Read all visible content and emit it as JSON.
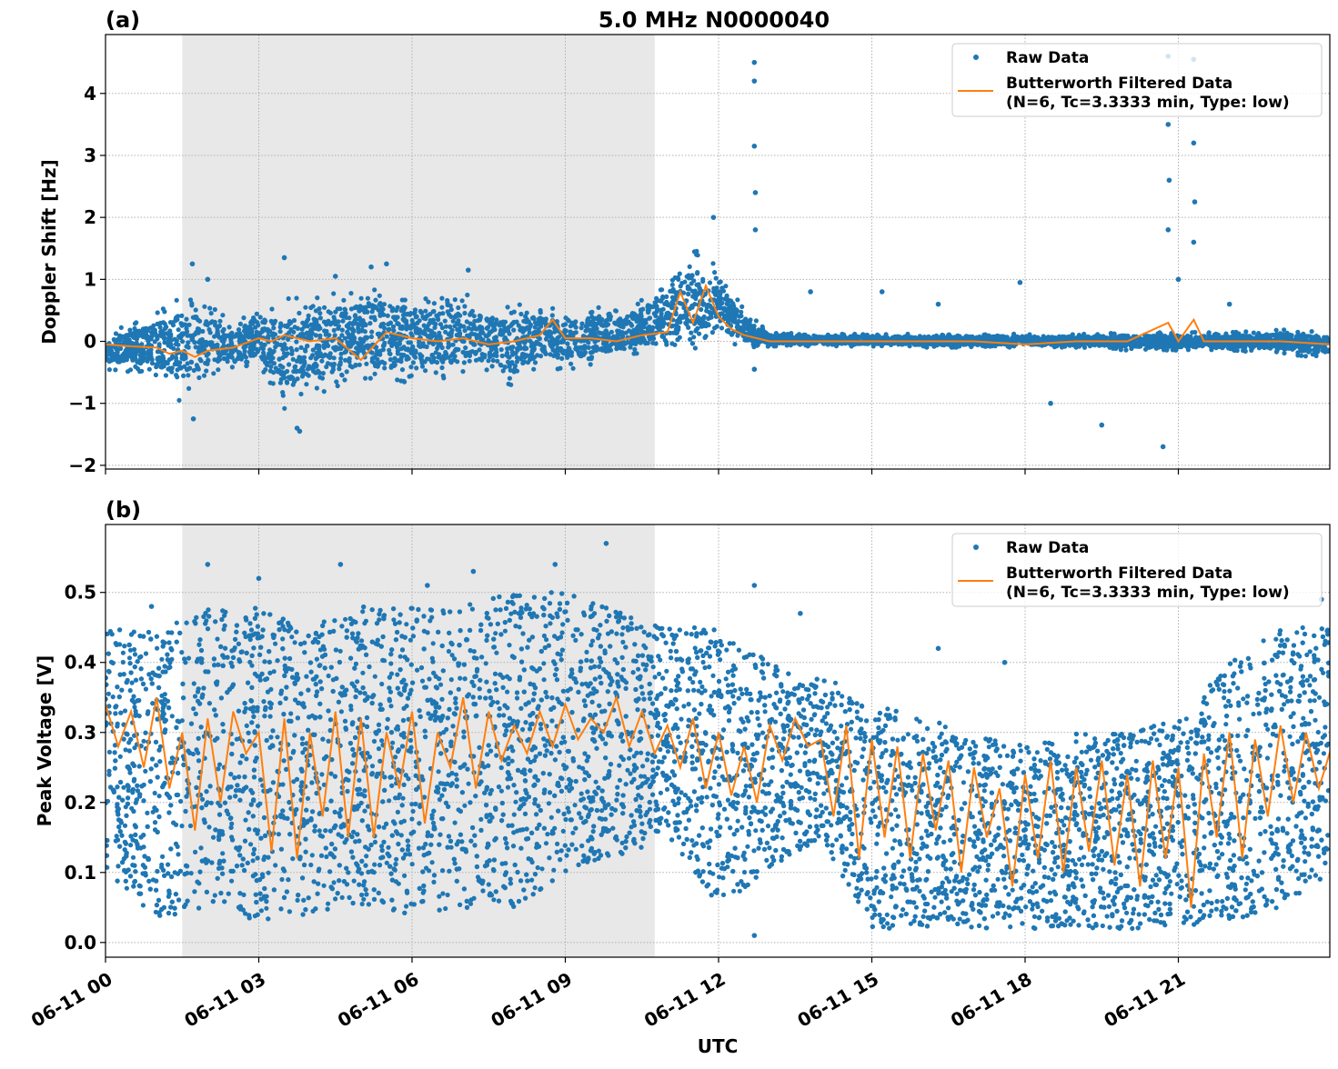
{
  "chart_data": [
    {
      "type": "scatter",
      "panel_label": "(a)",
      "title": "5.0 MHz N0000040",
      "xlabel": "",
      "ylabel": "Doppler Shift [Hz]",
      "xlim_hours": [
        0,
        24
      ],
      "ylim": [
        -2.06,
        4.95
      ],
      "yticks": [
        -2,
        -1,
        0,
        1,
        2,
        3,
        4
      ],
      "ytick_labels": [
        "−2",
        "−1",
        "0",
        "1",
        "2",
        "3",
        "4"
      ],
      "grid": true,
      "legend_position": "top-right",
      "shaded_interval_hours": [
        1.5,
        10.75
      ],
      "colors": {
        "raw": "#1f77b4",
        "filtered": "#ff7f0e",
        "shade": "#e8e8e8"
      },
      "series": [
        {
          "name": "Raw Data",
          "kind": "points",
          "envelope": {
            "t": [
              0,
              0.5,
              1,
              1.5,
              2,
              2.5,
              3,
              3.5,
              4,
              4.5,
              5,
              5.5,
              6,
              6.5,
              7,
              7.5,
              8,
              8.5,
              9,
              9.5,
              10,
              10.5,
              11,
              11.5,
              12,
              12.5,
              13,
              14,
              15,
              16,
              17,
              18,
              19,
              20,
              21,
              22,
              23,
              24
            ],
            "low": [
              -0.45,
              -0.5,
              -0.6,
              -1.0,
              -0.6,
              -0.5,
              -0.4,
              -1.2,
              -0.8,
              -0.9,
              -0.7,
              -0.8,
              -0.6,
              -0.6,
              -0.7,
              -0.5,
              -0.8,
              -0.4,
              -0.5,
              -0.4,
              -0.3,
              -0.2,
              -0.1,
              -0.2,
              0.0,
              -0.1,
              -0.08,
              -0.08,
              -0.08,
              -0.1,
              -0.1,
              -0.1,
              -0.1,
              -0.15,
              -0.15,
              -0.15,
              -0.2,
              -0.3
            ],
            "high": [
              0.1,
              0.3,
              0.5,
              0.8,
              0.6,
              0.3,
              0.6,
              0.7,
              0.7,
              0.9,
              0.9,
              1.0,
              0.8,
              0.7,
              0.9,
              0.6,
              0.6,
              0.6,
              0.5,
              0.6,
              0.5,
              0.7,
              1.0,
              1.5,
              1.2,
              0.5,
              0.15,
              0.12,
              0.12,
              0.12,
              0.12,
              0.12,
              0.12,
              0.15,
              0.15,
              0.15,
              0.2,
              0.15
            ]
          },
          "outliers": [
            [
              1.7,
              1.25
            ],
            [
              1.72,
              -1.25
            ],
            [
              2.0,
              1.0
            ],
            [
              3.5,
              1.35
            ],
            [
              3.8,
              -1.45
            ],
            [
              3.75,
              -1.4
            ],
            [
              4.5,
              1.05
            ],
            [
              5.2,
              1.2
            ],
            [
              5.5,
              1.25
            ],
            [
              7.1,
              1.15
            ],
            [
              11.9,
              2.0
            ],
            [
              12.7,
              4.5
            ],
            [
              12.7,
              4.2
            ],
            [
              12.7,
              3.15
            ],
            [
              12.72,
              2.4
            ],
            [
              12.72,
              1.8
            ],
            [
              12.7,
              -0.45
            ],
            [
              13.8,
              0.8
            ],
            [
              15.2,
              0.8
            ],
            [
              16.3,
              0.6
            ],
            [
              17.9,
              0.95
            ],
            [
              18.5,
              -1.0
            ],
            [
              19.5,
              -1.35
            ],
            [
              20.7,
              -1.7
            ],
            [
              20.8,
              4.6
            ],
            [
              20.8,
              3.5
            ],
            [
              20.82,
              2.6
            ],
            [
              20.8,
              1.8
            ],
            [
              21.0,
              1.0
            ],
            [
              21.3,
              4.55
            ],
            [
              21.3,
              3.2
            ],
            [
              21.32,
              2.25
            ],
            [
              21.3,
              1.6
            ],
            [
              22.0,
              0.6
            ]
          ]
        },
        {
          "name": "Butterworth Filtered Data\n(N=6, Tc=3.3333 min, Type: low)",
          "kind": "line",
          "t": [
            0,
            0.5,
            1,
            1.25,
            1.5,
            1.75,
            2,
            2.5,
            3,
            3.25,
            3.5,
            4,
            4.5,
            5,
            5.5,
            6,
            6.5,
            7,
            7.5,
            8,
            8.5,
            8.75,
            9,
            9.5,
            10,
            10.5,
            11,
            11.25,
            11.5,
            11.75,
            12,
            12.25,
            12.5,
            13,
            14,
            15,
            16,
            17,
            18,
            19,
            20,
            20.8,
            21,
            21.3,
            21.5,
            22,
            23,
            24
          ],
          "y": [
            -0.05,
            -0.08,
            -0.1,
            -0.2,
            -0.15,
            -0.25,
            -0.15,
            -0.1,
            0.05,
            0.0,
            0.1,
            0.0,
            0.05,
            -0.3,
            0.15,
            0.05,
            0.0,
            0.05,
            -0.05,
            0.0,
            0.1,
            0.35,
            0.05,
            0.05,
            0.0,
            0.1,
            0.15,
            0.8,
            0.3,
            0.9,
            0.4,
            0.2,
            0.1,
            0.0,
            0.0,
            0.0,
            0.0,
            0.0,
            -0.05,
            0.0,
            0.0,
            0.3,
            0.0,
            0.35,
            0.0,
            0.0,
            0.0,
            -0.05
          ]
        }
      ]
    },
    {
      "type": "scatter",
      "panel_label": "(b)",
      "title": "",
      "xlabel": "UTC",
      "ylabel": "Peak Voltage [V]",
      "xlim_hours": [
        0,
        24
      ],
      "ylim": [
        -0.021,
        0.597
      ],
      "yticks": [
        0.0,
        0.1,
        0.2,
        0.3,
        0.4,
        0.5
      ],
      "ytick_labels": [
        "0.0",
        "0.1",
        "0.2",
        "0.3",
        "0.4",
        "0.5"
      ],
      "xticks_hours": [
        0,
        3,
        6,
        9,
        12,
        15,
        18,
        21
      ],
      "xtick_labels": [
        "06-11 00",
        "06-11 03",
        "06-11 06",
        "06-11 09",
        "06-11 12",
        "06-11 15",
        "06-11 18",
        "06-11 21"
      ],
      "grid": true,
      "legend_position": "top-right",
      "shaded_interval_hours": [
        1.5,
        10.75
      ],
      "colors": {
        "raw": "#1f77b4",
        "filtered": "#ff7f0e",
        "shade": "#e8e8e8"
      },
      "series": [
        {
          "name": "Raw Data",
          "kind": "points",
          "envelope": {
            "t": [
              0,
              1,
              2,
              3,
              4,
              5,
              6,
              7,
              8,
              9,
              10,
              11,
              12,
              13,
              14,
              15,
              16,
              17,
              18,
              19,
              20,
              21,
              22,
              23,
              24
            ],
            "low": [
              0.1,
              0.03,
              0.05,
              0.03,
              0.04,
              0.05,
              0.04,
              0.05,
              0.05,
              0.1,
              0.12,
              0.15,
              0.05,
              0.1,
              0.15,
              0.02,
              0.02,
              0.02,
              0.02,
              0.02,
              0.02,
              0.02,
              0.03,
              0.05,
              0.1
            ],
            "high": [
              0.45,
              0.45,
              0.48,
              0.48,
              0.45,
              0.48,
              0.48,
              0.48,
              0.5,
              0.5,
              0.48,
              0.45,
              0.45,
              0.4,
              0.38,
              0.35,
              0.32,
              0.3,
              0.28,
              0.3,
              0.3,
              0.32,
              0.4,
              0.45,
              0.45
            ]
          },
          "outliers": [
            [
              0.9,
              0.48
            ],
            [
              2.0,
              0.54
            ],
            [
              3.0,
              0.52
            ],
            [
              4.6,
              0.54
            ],
            [
              6.3,
              0.51
            ],
            [
              7.2,
              0.53
            ],
            [
              8.8,
              0.54
            ],
            [
              9.8,
              0.57
            ],
            [
              12.7,
              0.51
            ],
            [
              12.7,
              0.01
            ],
            [
              13.6,
              0.47
            ],
            [
              16.3,
              0.42
            ],
            [
              17.6,
              0.4
            ],
            [
              23.8,
              0.49
            ]
          ]
        },
        {
          "name": "Butterworth Filtered Data\n(N=6, Tc=3.3333 min, Type: low)",
          "kind": "line",
          "t": [
            0,
            0.25,
            0.5,
            0.75,
            1,
            1.25,
            1.5,
            1.75,
            2,
            2.25,
            2.5,
            2.75,
            3,
            3.25,
            3.5,
            3.75,
            4,
            4.25,
            4.5,
            4.75,
            5,
            5.25,
            5.5,
            5.75,
            6,
            6.25,
            6.5,
            6.75,
            7,
            7.25,
            7.5,
            7.75,
            8,
            8.25,
            8.5,
            8.75,
            9,
            9.25,
            9.5,
            9.75,
            10,
            10.25,
            10.5,
            10.75,
            11,
            11.25,
            11.5,
            11.75,
            12,
            12.25,
            12.5,
            12.75,
            13,
            13.25,
            13.5,
            13.75,
            14,
            14.25,
            14.5,
            14.75,
            15,
            15.25,
            15.5,
            15.75,
            16,
            16.25,
            16.5,
            16.75,
            17,
            17.25,
            17.5,
            17.75,
            18,
            18.25,
            18.5,
            18.75,
            19,
            19.25,
            19.5,
            19.75,
            20,
            20.25,
            20.5,
            20.75,
            21,
            21.25,
            21.5,
            21.75,
            22,
            22.25,
            22.5,
            22.75,
            23,
            23.25,
            23.5,
            23.75,
            24
          ],
          "y": [
            0.34,
            0.28,
            0.33,
            0.25,
            0.35,
            0.22,
            0.3,
            0.16,
            0.32,
            0.2,
            0.33,
            0.27,
            0.3,
            0.13,
            0.32,
            0.12,
            0.3,
            0.18,
            0.33,
            0.15,
            0.32,
            0.15,
            0.3,
            0.22,
            0.33,
            0.17,
            0.3,
            0.25,
            0.35,
            0.22,
            0.33,
            0.26,
            0.31,
            0.27,
            0.33,
            0.28,
            0.34,
            0.29,
            0.32,
            0.3,
            0.35,
            0.28,
            0.33,
            0.27,
            0.31,
            0.25,
            0.32,
            0.22,
            0.3,
            0.21,
            0.28,
            0.2,
            0.31,
            0.26,
            0.32,
            0.28,
            0.29,
            0.18,
            0.31,
            0.12,
            0.29,
            0.15,
            0.28,
            0.12,
            0.27,
            0.16,
            0.26,
            0.1,
            0.25,
            0.15,
            0.22,
            0.08,
            0.24,
            0.12,
            0.26,
            0.1,
            0.25,
            0.13,
            0.26,
            0.11,
            0.24,
            0.08,
            0.26,
            0.12,
            0.25,
            0.05,
            0.27,
            0.15,
            0.3,
            0.12,
            0.29,
            0.18,
            0.31,
            0.2,
            0.3,
            0.22,
            0.28
          ]
        }
      ]
    }
  ]
}
